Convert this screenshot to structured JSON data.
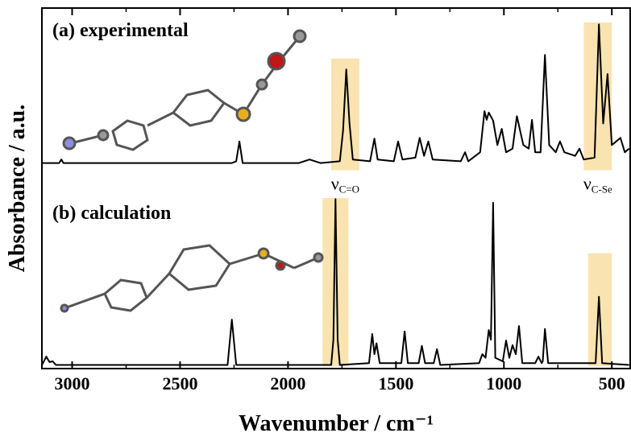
{
  "chart_data": {
    "type": "line",
    "x_label": "Wavenumber / cm⁻¹",
    "y_label": "Absorbance / a.u.",
    "xlim": [
      3140,
      415
    ],
    "ylim": [
      0,
      100
    ],
    "xticks": [
      3000,
      2500,
      2000,
      1500,
      1000,
      500
    ],
    "xminorticks": [
      2750,
      2250,
      1750,
      1250,
      750
    ],
    "highlight_color": "#f9e3b0",
    "highlights": [
      {
        "x": [
          1800,
          1670
        ],
        "y": [
          55,
          86
        ]
      },
      {
        "x": [
          630,
          500
        ],
        "y": [
          55,
          96
        ]
      },
      {
        "x": [
          1840,
          1720
        ],
        "y": [
          0.7,
          47.3
        ]
      },
      {
        "x": [
          610,
          500
        ],
        "y": [
          0.7,
          32
        ]
      }
    ],
    "annotations": [
      {
        "symbol": "ν",
        "sub": "C=O"
      },
      {
        "symbol": "ν",
        "sub": "C-Se"
      }
    ],
    "series": [
      {
        "name": "(a) experimental",
        "color": "#000000",
        "x": [
          3140,
          3060,
          3050,
          3040,
          2260,
          2240,
          2225,
          2210,
          1950,
          1900,
          1850,
          1760,
          1745,
          1730,
          1715,
          1700,
          1620,
          1600,
          1585,
          1510,
          1490,
          1470,
          1410,
          1390,
          1370,
          1350,
          1330,
          1200,
          1180,
          1165,
          1110,
          1090,
          1080,
          1070,
          1050,
          1030,
          1010,
          990,
          960,
          940,
          910,
          885,
          870,
          855,
          830,
          810,
          790,
          760,
          740,
          720,
          670,
          650,
          630,
          580,
          560,
          540,
          520,
          500,
          480,
          460,
          440,
          420
        ],
        "values": [
          57,
          57,
          58,
          57,
          57,
          57.5,
          63,
          57,
          57,
          58,
          57,
          57.5,
          66,
          83,
          68,
          58,
          57.5,
          63.8,
          58,
          57.5,
          63,
          58,
          58.5,
          64,
          59,
          63,
          58,
          57.5,
          60,
          57.5,
          60,
          71.4,
          69,
          71,
          68.8,
          62,
          66.5,
          60,
          61,
          70,
          62,
          61,
          69,
          60,
          60,
          87,
          62,
          60,
          63,
          60,
          59,
          61,
          58,
          58.5,
          95.5,
          68,
          81.7,
          62,
          63,
          64,
          60,
          61
        ]
      },
      {
        "name": "(b) calculation",
        "color": "#000000",
        "x": [
          3140,
          3135,
          3120,
          3105,
          3090,
          3075,
          3000,
          2280,
          2260,
          2240,
          1800,
          1790,
          1780,
          1770,
          1760,
          1625,
          1610,
          1600,
          1590,
          1575,
          1475,
          1460,
          1445,
          1395,
          1380,
          1365,
          1325,
          1310,
          1295,
          1115,
          1100,
          1085,
          1070,
          1060,
          1050,
          1040,
          1005,
          990,
          975,
          960,
          945,
          930,
          915,
          855,
          840,
          825,
          820,
          810,
          795,
          575,
          560,
          545,
          420
        ],
        "values": [
          1,
          1.5,
          3.3,
          1.8,
          2,
          1,
          1,
          1,
          13.6,
          1,
          1,
          8,
          47,
          8,
          1,
          1.5,
          9.6,
          4,
          7,
          1.5,
          1.5,
          10.3,
          1.5,
          1.5,
          6.3,
          1.5,
          1.5,
          5.4,
          1,
          1.5,
          4,
          3,
          10.7,
          8,
          46,
          3,
          2,
          7.8,
          3,
          6.5,
          4,
          11.8,
          1.5,
          1.5,
          3.3,
          1.5,
          2,
          11,
          1.5,
          1.5,
          19.9,
          1.5,
          1
        ]
      }
    ]
  }
}
